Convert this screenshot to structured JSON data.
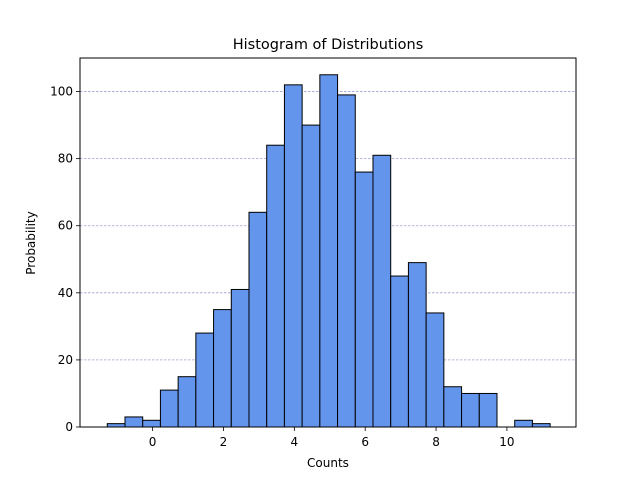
{
  "chart_data": {
    "type": "bar",
    "title": "Histogram of Distributions",
    "xlabel": "Counts",
    "ylabel": "Probability",
    "bin_start": -1.28,
    "bin_width": 0.5,
    "counts": [
      1,
      3,
      2,
      11,
      15,
      28,
      35,
      41,
      64,
      84,
      102,
      90,
      105,
      99,
      76,
      81,
      45,
      49,
      34,
      12,
      10,
      10,
      0,
      2,
      1
    ],
    "xlim": [
      -2.05,
      11.95
    ],
    "ylim": [
      0,
      110
    ],
    "xticks": [
      0,
      2,
      4,
      6,
      8,
      10
    ],
    "yticks": [
      0,
      20,
      40,
      60,
      80,
      100
    ],
    "grid": {
      "axis": "y",
      "style": "dashed"
    },
    "colors": {
      "bar_fill": "#6495ed",
      "bar_edge": "#000000",
      "grid": "#9fa3d6"
    }
  }
}
